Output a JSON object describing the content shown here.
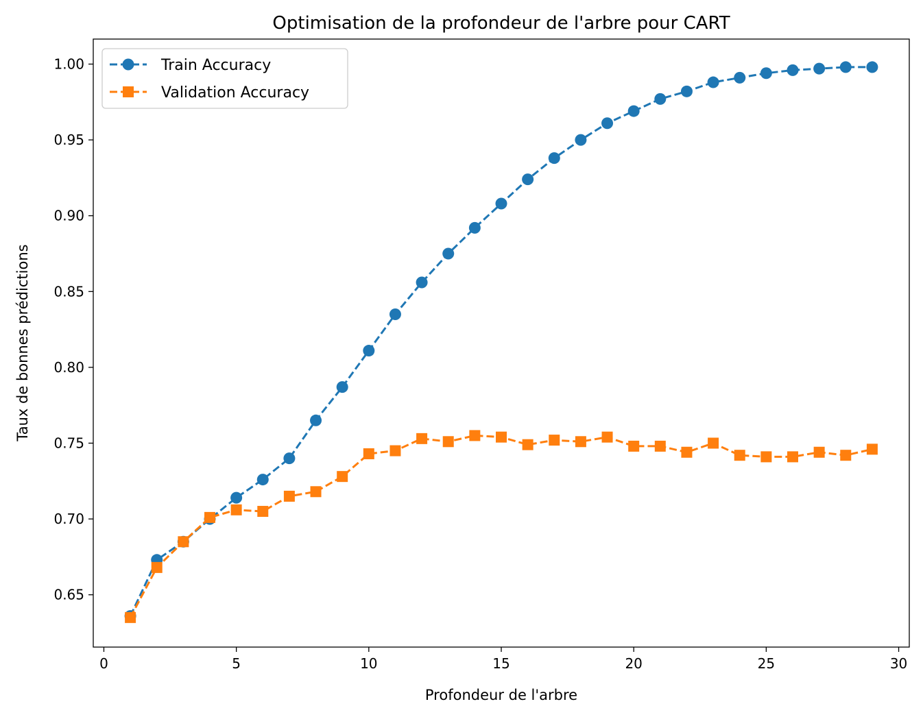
{
  "chart_data": {
    "type": "line",
    "title": "Optimisation de la profondeur de l'arbre pour CART",
    "xlabel": "Profondeur de l'arbre",
    "ylabel": "Taux de bonnes prédictions",
    "xlim": [
      -0.4,
      30.4
    ],
    "ylim": [
      0.6155,
      1.0165
    ],
    "xticks": [
      0,
      5,
      10,
      15,
      20,
      25,
      30
    ],
    "xtick_labels": [
      "0",
      "5",
      "10",
      "15",
      "20",
      "25",
      "30"
    ],
    "yticks": [
      0.65,
      0.7,
      0.75,
      0.8,
      0.85,
      0.9,
      0.95,
      1.0
    ],
    "ytick_labels": [
      "0.65",
      "0.70",
      "0.75",
      "0.80",
      "0.85",
      "0.90",
      "0.95",
      "1.00"
    ],
    "grid": false,
    "legend_position": "upper-left",
    "x": [
      1,
      2,
      3,
      4,
      5,
      6,
      7,
      8,
      9,
      10,
      11,
      12,
      13,
      14,
      15,
      16,
      17,
      18,
      19,
      20,
      21,
      22,
      23,
      24,
      25,
      26,
      27,
      28,
      29
    ],
    "series": [
      {
        "name": "Train Accuracy",
        "color": "#1f77b4",
        "marker": "circle",
        "line_style": "dashed",
        "values": [
          0.636,
          0.673,
          0.685,
          0.7,
          0.714,
          0.726,
          0.74,
          0.765,
          0.787,
          0.811,
          0.835,
          0.856,
          0.875,
          0.892,
          0.908,
          0.924,
          0.938,
          0.95,
          0.961,
          0.969,
          0.977,
          0.982,
          0.988,
          0.991,
          0.994,
          0.996,
          0.997,
          0.998,
          0.998
        ]
      },
      {
        "name": "Validation Accuracy",
        "color": "#ff7f0e",
        "marker": "square",
        "line_style": "dashed",
        "values": [
          0.635,
          0.668,
          0.685,
          0.701,
          0.706,
          0.705,
          0.715,
          0.718,
          0.728,
          0.743,
          0.745,
          0.753,
          0.751,
          0.755,
          0.754,
          0.749,
          0.752,
          0.751,
          0.754,
          0.748,
          0.748,
          0.744,
          0.75,
          0.742,
          0.741,
          0.741,
          0.744,
          0.742,
          0.746
        ]
      }
    ]
  }
}
